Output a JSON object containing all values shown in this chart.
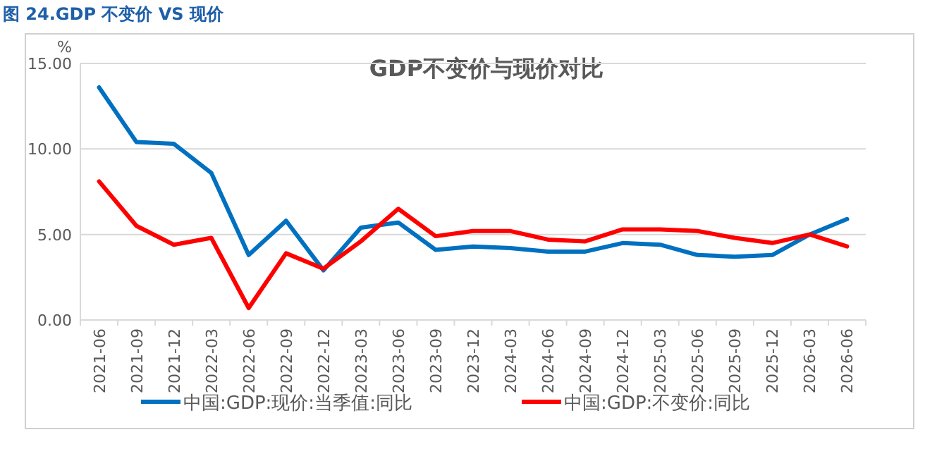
{
  "chart_data": {
    "type": "line",
    "title": "图 24.GDP 不变价 VS 现价",
    "subtitle": "GDP不变价与现价对比",
    "ylabel": "%",
    "categories": [
      "2021-06",
      "2021-09",
      "2021-12",
      "2022-03",
      "2022-06",
      "2022-09",
      "2022-12",
      "2023-03",
      "2023-06",
      "2023-09",
      "2023-12",
      "2024-03",
      "2024-06",
      "2024-09",
      "2024-12",
      "2025-03",
      "2025-06",
      "2025-09",
      "2025-12",
      "2026-03",
      "2026-06"
    ],
    "series": [
      {
        "name": "中国:GDP:现价:当季值:同比",
        "color": "#0070c0",
        "values": [
          13.6,
          10.4,
          10.3,
          8.6,
          3.8,
          5.8,
          2.9,
          5.4,
          5.7,
          4.1,
          4.3,
          4.2,
          4.0,
          4.0,
          4.5,
          4.4,
          3.8,
          3.7,
          3.8,
          5.0,
          5.9
        ]
      },
      {
        "name": "中国:GDP:不变价:同比",
        "color": "#ff0000",
        "values": [
          8.1,
          5.5,
          4.4,
          4.8,
          0.7,
          3.9,
          3.0,
          4.6,
          6.5,
          4.9,
          5.2,
          5.2,
          4.7,
          4.6,
          5.3,
          5.3,
          5.2,
          4.8,
          4.5,
          5.0,
          4.3
        ]
      }
    ],
    "ylim": [
      0,
      15
    ],
    "yticks": [
      {
        "value": 0,
        "label": "0.00"
      },
      {
        "value": 5,
        "label": "5.00"
      },
      {
        "value": 10,
        "label": "10.00"
      },
      {
        "value": 15,
        "label": "15.00"
      }
    ],
    "grid": "y",
    "legend": "bottom",
    "line_style": "solid"
  }
}
